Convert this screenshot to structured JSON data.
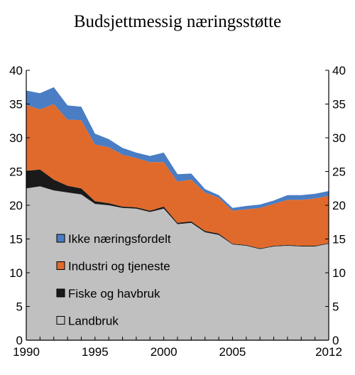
{
  "chart_data": {
    "type": "area",
    "stacked": true,
    "title": "Budsjettmessig næringsstøtte",
    "xlabel": "",
    "ylabel": "",
    "xlim": [
      1990,
      2012
    ],
    "ylim": [
      0,
      40
    ],
    "yticks": [
      0,
      5,
      10,
      15,
      20,
      25,
      30,
      35,
      40
    ],
    "xticks": [
      1990,
      1995,
      2000,
      2005,
      2012
    ],
    "grid": false,
    "legend_position": "inside-lower-left",
    "x": [
      1990,
      1991,
      1992,
      1993,
      1994,
      1995,
      1996,
      1997,
      1998,
      1999,
      2000,
      2001,
      2002,
      2003,
      2004,
      2005,
      2006,
      2007,
      2008,
      2009,
      2010,
      2011,
      2012
    ],
    "series": [
      {
        "name": "Landbruk",
        "color": "#c0c0c0",
        "values": [
          22.5,
          22.8,
          22.2,
          21.9,
          21.6,
          20.2,
          20.0,
          19.6,
          19.5,
          19.0,
          19.5,
          17.2,
          17.4,
          16.0,
          15.6,
          14.2,
          14.0,
          13.5,
          13.9,
          14.0,
          13.9,
          13.9,
          14.3
        ]
      },
      {
        "name": "Fiske og havbruk",
        "color": "#1a1a1a",
        "values": [
          2.6,
          2.5,
          1.6,
          1.0,
          0.9,
          0.4,
          0.3,
          0.2,
          0.2,
          0.2,
          0.3,
          0.2,
          0.2,
          0.2,
          0.2,
          0.1,
          0.1,
          0.1,
          0.1,
          0.1,
          0.1,
          0.1,
          0.1
        ]
      },
      {
        "name": "Industri og tjeneste",
        "color": "#e06a2c",
        "values": [
          9.8,
          8.9,
          11.2,
          9.8,
          10.1,
          8.4,
          8.3,
          7.7,
          7.3,
          7.2,
          6.6,
          6.1,
          6.2,
          5.7,
          5.3,
          4.9,
          5.3,
          6.0,
          6.2,
          6.7,
          6.8,
          7.0,
          7.0
        ]
      },
      {
        "name": "Ikke næringsfordelt",
        "color": "#4a7dc4",
        "values": [
          2.1,
          2.4,
          2.5,
          2.1,
          2.0,
          1.6,
          1.2,
          1.0,
          0.8,
          0.9,
          1.4,
          1.1,
          0.9,
          0.5,
          0.4,
          0.4,
          0.5,
          0.5,
          0.5,
          0.7,
          0.7,
          0.7,
          0.7
        ]
      }
    ],
    "legend_order": [
      "Ikke næringsfordelt",
      "Industri og tjeneste",
      "Fiske og havbruk",
      "Landbruk"
    ]
  }
}
